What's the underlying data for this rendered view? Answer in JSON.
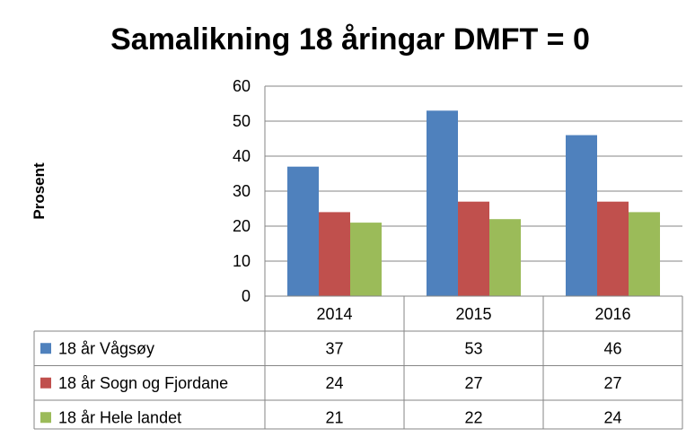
{
  "chart_data": {
    "type": "bar",
    "title": "Samalikning 18 åringar DMFT = 0",
    "ylabel": "Prosent",
    "xlabel": "",
    "categories": [
      "2014",
      "2015",
      "2016"
    ],
    "ylim": [
      0,
      60
    ],
    "yticks": [
      "0",
      "10",
      "20",
      "30",
      "40",
      "50",
      "60"
    ],
    "grid": true,
    "legend_placement": "data-table",
    "series": [
      {
        "name": "18 år Vågsøy",
        "color": "#4f81bd",
        "values": [
          37,
          53,
          46
        ]
      },
      {
        "name": "18 år Sogn og Fjordane",
        "color": "#c0504d",
        "values": [
          24,
          27,
          27
        ]
      },
      {
        "name": "18 år Hele landet",
        "color": "#9bbb59",
        "values": [
          21,
          22,
          24
        ]
      }
    ]
  }
}
